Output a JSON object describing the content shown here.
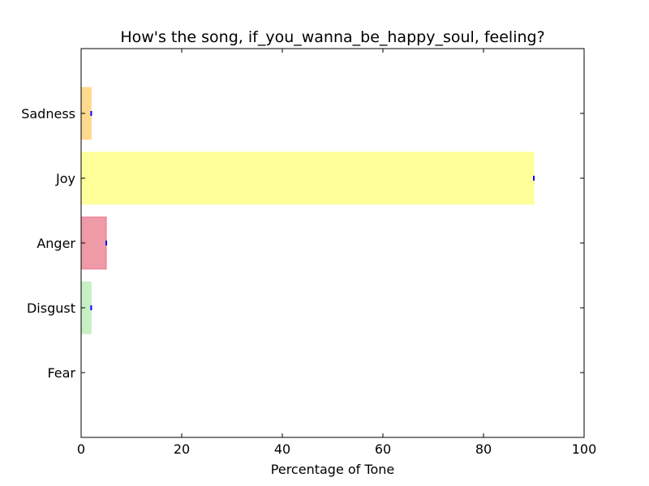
{
  "chart_data": {
    "type": "bar",
    "orientation": "horizontal",
    "title": "How's the song, if_you_wanna_be_happy_soul, feeling?",
    "xlabel": "Percentage of Tone",
    "ylabel": "",
    "xlim": [
      0,
      100
    ],
    "xticks": [
      "0",
      "20",
      "40",
      "60",
      "80",
      "100"
    ],
    "categories": [
      "Fear",
      "Disgust",
      "Anger",
      "Joy",
      "Sadness"
    ],
    "values": [
      0,
      2,
      5,
      90,
      2
    ],
    "bar_colors": [
      "#ffffff",
      "#c9efc4",
      "#ef9ba7",
      "#ffff99",
      "#ffd98e"
    ],
    "bar_edge_colors": [
      "#ffffff",
      "#c9efc4",
      "#e8728a",
      "#ffff99",
      "#ffd98e"
    ],
    "error_marker_color": "#0000ff",
    "grid": false,
    "legend": "none"
  }
}
